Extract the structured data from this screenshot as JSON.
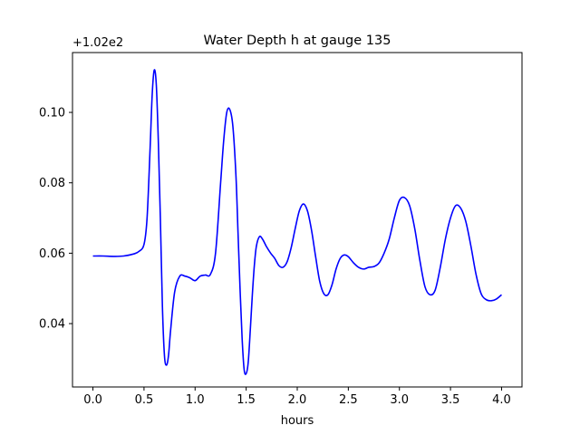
{
  "chart_data": {
    "type": "line",
    "title": "Water Depth h at gauge 135",
    "xlabel": "hours",
    "ylabel": "",
    "offset_label": "+1.02e2",
    "xlim": [
      -0.2,
      4.2
    ],
    "ylim": [
      0.022,
      0.117
    ],
    "xticks": [
      0.0,
      0.5,
      1.0,
      1.5,
      2.0,
      2.5,
      3.0,
      3.5,
      4.0
    ],
    "xtick_labels": [
      "0.0",
      "0.5",
      "1.0",
      "1.5",
      "2.0",
      "2.5",
      "3.0",
      "3.5",
      "4.0"
    ],
    "yticks": [
      0.04,
      0.06,
      0.08,
      0.1
    ],
    "ytick_labels": [
      "0.04",
      "0.06",
      "0.08",
      "0.10"
    ],
    "grid": false,
    "line_color": "#0000ff",
    "series": [
      {
        "x": [
          0.0,
          0.1,
          0.2,
          0.3,
          0.4,
          0.45,
          0.5,
          0.53,
          0.56,
          0.58,
          0.6,
          0.62,
          0.64,
          0.66,
          0.68,
          0.7,
          0.72,
          0.74,
          0.76,
          0.8,
          0.85,
          0.9,
          0.95,
          1.0,
          1.05,
          1.1,
          1.15,
          1.2,
          1.25,
          1.28,
          1.31,
          1.34,
          1.37,
          1.4,
          1.42,
          1.44,
          1.46,
          1.48,
          1.5,
          1.52,
          1.54,
          1.56,
          1.58,
          1.6,
          1.63,
          1.66,
          1.7,
          1.74,
          1.78,
          1.82,
          1.86,
          1.9,
          1.94,
          1.98,
          2.02,
          2.06,
          2.1,
          2.14,
          2.18,
          2.22,
          2.26,
          2.3,
          2.34,
          2.38,
          2.42,
          2.46,
          2.5,
          2.55,
          2.6,
          2.65,
          2.7,
          2.75,
          2.8,
          2.85,
          2.9,
          2.95,
          3.0,
          3.05,
          3.1,
          3.15,
          3.2,
          3.25,
          3.3,
          3.35,
          3.4,
          3.45,
          3.5,
          3.55,
          3.6,
          3.65,
          3.7,
          3.75,
          3.8,
          3.85,
          3.9,
          3.95,
          4.0
        ],
        "y": [
          0.0592,
          0.0592,
          0.0591,
          0.0592,
          0.0598,
          0.0605,
          0.0625,
          0.07,
          0.09,
          0.105,
          0.112,
          0.108,
          0.092,
          0.07,
          0.045,
          0.031,
          0.0282,
          0.031,
          0.038,
          0.049,
          0.0535,
          0.0535,
          0.053,
          0.0522,
          0.0535,
          0.0538,
          0.054,
          0.06,
          0.08,
          0.092,
          0.1,
          0.1008,
          0.096,
          0.082,
          0.066,
          0.05,
          0.036,
          0.027,
          0.0258,
          0.029,
          0.038,
          0.048,
          0.0565,
          0.062,
          0.0647,
          0.064,
          0.0618,
          0.06,
          0.0585,
          0.0565,
          0.056,
          0.0575,
          0.0615,
          0.067,
          0.072,
          0.074,
          0.072,
          0.0665,
          0.059,
          0.052,
          0.0485,
          0.0482,
          0.051,
          0.0555,
          0.0585,
          0.0595,
          0.059,
          0.0573,
          0.056,
          0.0555,
          0.056,
          0.0562,
          0.0572,
          0.06,
          0.064,
          0.07,
          0.075,
          0.0758,
          0.0735,
          0.067,
          0.058,
          0.0505,
          0.0482,
          0.0495,
          0.056,
          0.064,
          0.07,
          0.0735,
          0.0728,
          0.069,
          0.062,
          0.054,
          0.0485,
          0.0468,
          0.0465,
          0.047,
          0.0482
        ]
      }
    ]
  }
}
